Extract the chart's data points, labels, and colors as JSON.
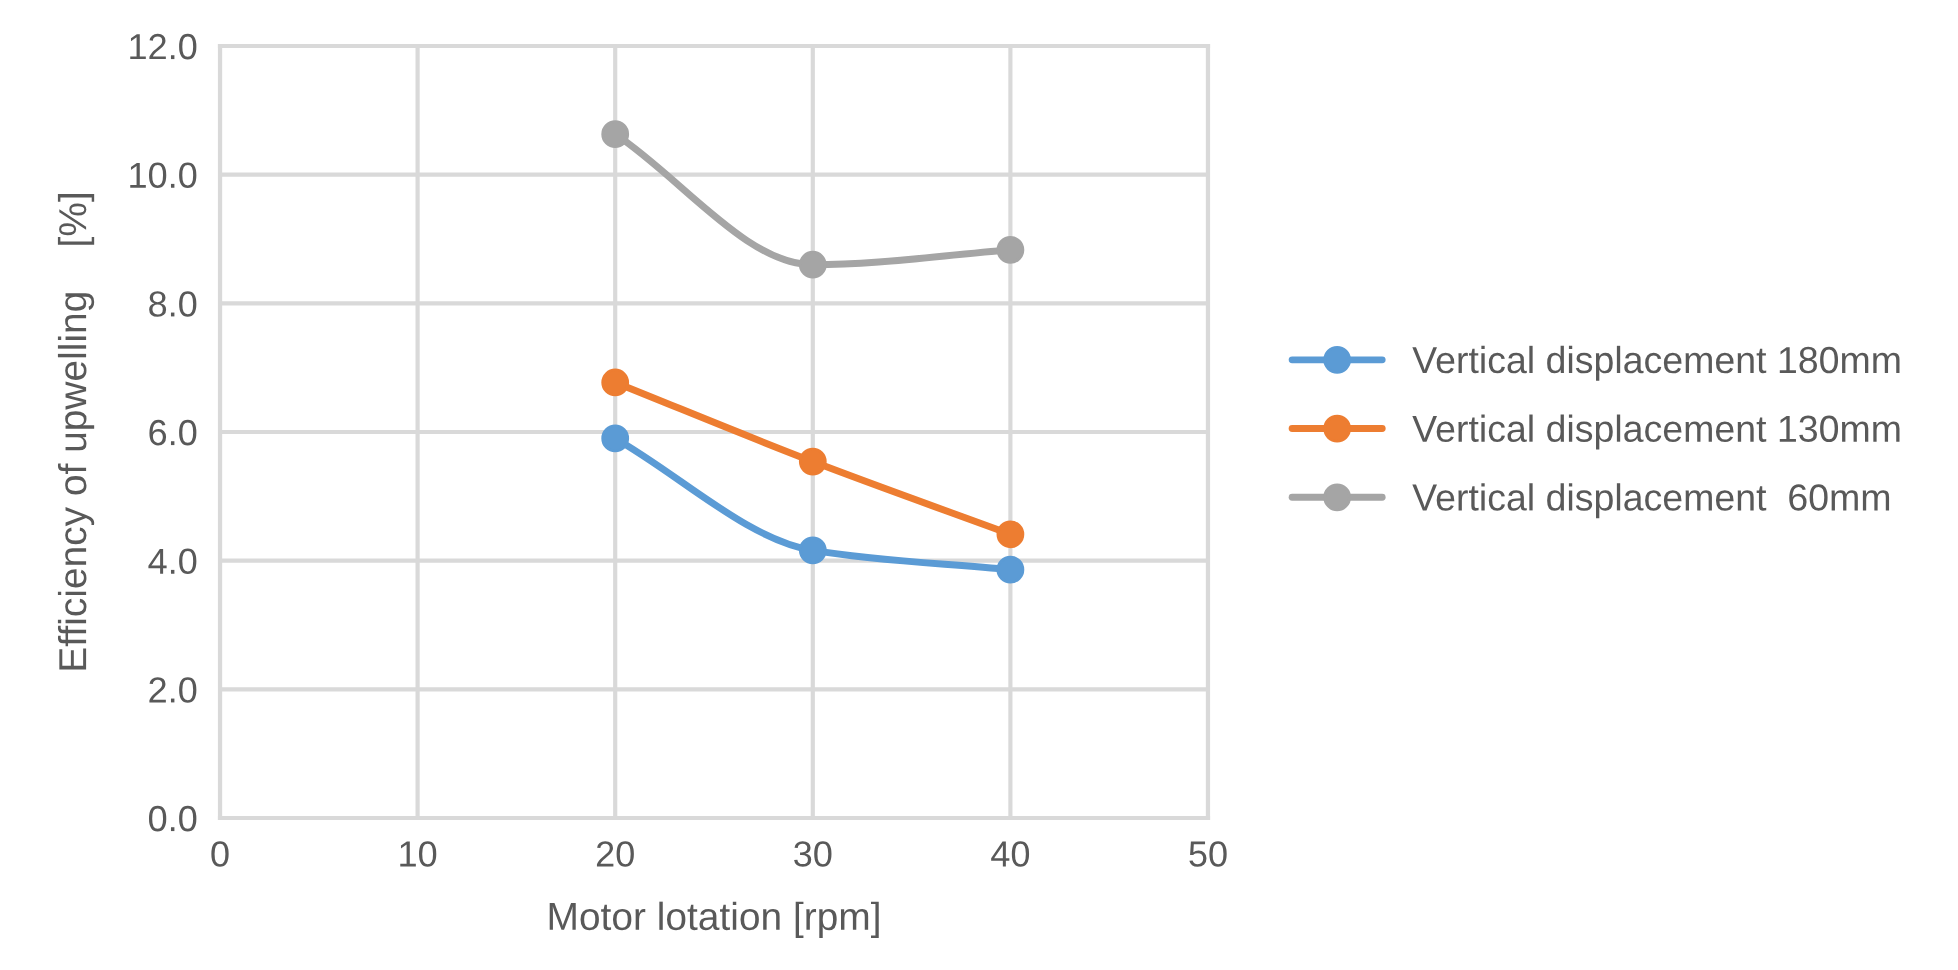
{
  "chart_data": {
    "type": "line",
    "xlabel": "Motor lotation [rpm]",
    "ylabel": "Efficiency of upwelling    [%]",
    "x": [
      20,
      30,
      40
    ],
    "series": [
      {
        "name": "Vertical displacement 180mm",
        "color": "#5b9bd5",
        "values": [
          5.9,
          4.16,
          3.86
        ]
      },
      {
        "name": "Vertical displacement 130mm",
        "color": "#ed7d31",
        "values": [
          6.77,
          5.54,
          4.41
        ]
      },
      {
        "name": "Vertical displacement  60mm",
        "color": "#a5a5a5",
        "values": [
          10.63,
          8.6,
          8.83
        ]
      }
    ],
    "xlim": [
      0,
      50
    ],
    "xticks": [
      0,
      10,
      20,
      30,
      40,
      50
    ],
    "ylim": [
      0,
      12
    ],
    "yticks": [
      {
        "value": 0,
        "label": "0.0"
      },
      {
        "value": 2,
        "label": "2.0"
      },
      {
        "value": 4,
        "label": "4.0"
      },
      {
        "value": 6,
        "label": "6.0"
      },
      {
        "value": 8,
        "label": "8.0"
      },
      {
        "value": 10,
        "label": "10.0"
      },
      {
        "value": 12,
        "label": "12.0"
      }
    ],
    "grid": true,
    "legend": "right",
    "marker": "circle",
    "line_style": "solid"
  }
}
